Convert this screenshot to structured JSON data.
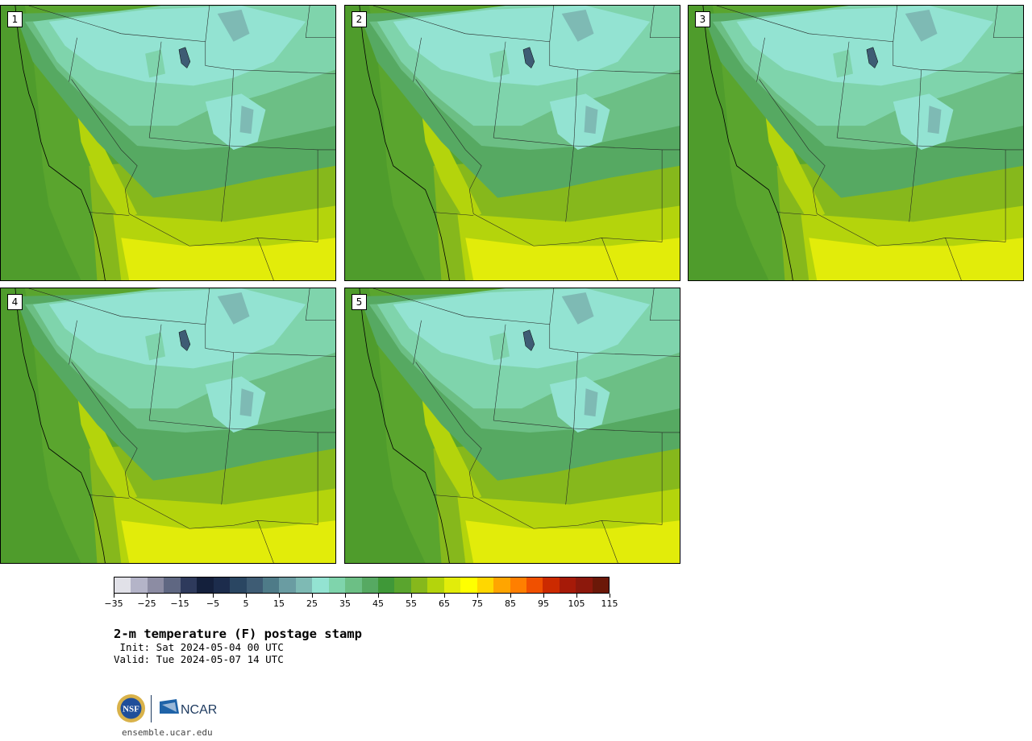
{
  "panels": [
    {
      "label": "1"
    },
    {
      "label": "2"
    },
    {
      "label": "3"
    },
    {
      "label": "4"
    },
    {
      "label": "5"
    }
  ],
  "colorbar": {
    "colors": [
      "#e1e1e8",
      "#b4b4c8",
      "#8c8ca3",
      "#5f6782",
      "#2e3a5c",
      "#14203c",
      "#1c2c4c",
      "#2a4662",
      "#3e5c74",
      "#4e7b88",
      "#6a9ca2",
      "#7ebab4",
      "#93e3d2",
      "#7fd4ac",
      "#6cbf85",
      "#56a962",
      "#3f9838",
      "#5aa52e",
      "#86b81c",
      "#b4d40c",
      "#e2ec0a",
      "#ffff00",
      "#ffd700",
      "#ffa500",
      "#ff7f00",
      "#f05000",
      "#cc2a00",
      "#a61a08",
      "#8c180c",
      "#6b1808"
    ],
    "tick_labels": [
      "−35",
      "−25",
      "−15",
      "−5",
      "5",
      "15",
      "25",
      "35",
      "45",
      "55",
      "65",
      "75",
      "85",
      "95",
      "105",
      "115"
    ]
  },
  "title": "2-m temperature (F) postage stamp",
  "init": " Init: Sat 2024-05-04 00 UTC",
  "valid": "Valid: Tue 2024-05-07 14 UTC",
  "logos": {
    "nsf_text": "NSF",
    "ncar_text": "NCAR",
    "url": "ensemble.ucar.edu"
  }
}
